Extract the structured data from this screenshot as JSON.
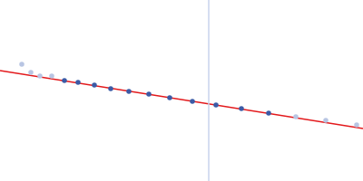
{
  "chart_data": {
    "type": "scatter",
    "xlim": [
      0,
      400
    ],
    "ylim": [
      0,
      200
    ],
    "tick_labels": false,
    "grid": false,
    "series": [
      {
        "type": "scatter",
        "color": "#b8c5e3",
        "marker": "circle",
        "x": [
          24,
          34,
          44,
          57,
          326,
          359,
          393
        ],
        "values": [
          129,
          120,
          116,
          116,
          71,
          67,
          62
        ]
      },
      {
        "type": "scatter",
        "color": "#3b5ba6",
        "marker": "circle",
        "x": [
          71,
          86,
          104,
          122,
          142,
          164,
          187,
          212,
          238,
          266,
          296
        ],
        "values": [
          111,
          109,
          106,
          102,
          99,
          96,
          92,
          88,
          84,
          80,
          75
        ]
      },
      {
        "type": "line",
        "color": "#e3191c",
        "line_style": "solid",
        "x": [
          0,
          400
        ],
        "values": [
          122,
          58
        ]
      },
      {
        "type": "line",
        "color": "#c9d3ec",
        "line_style": "solid",
        "x": [
          230,
          230
        ],
        "values": [
          0,
          200
        ]
      }
    ]
  }
}
